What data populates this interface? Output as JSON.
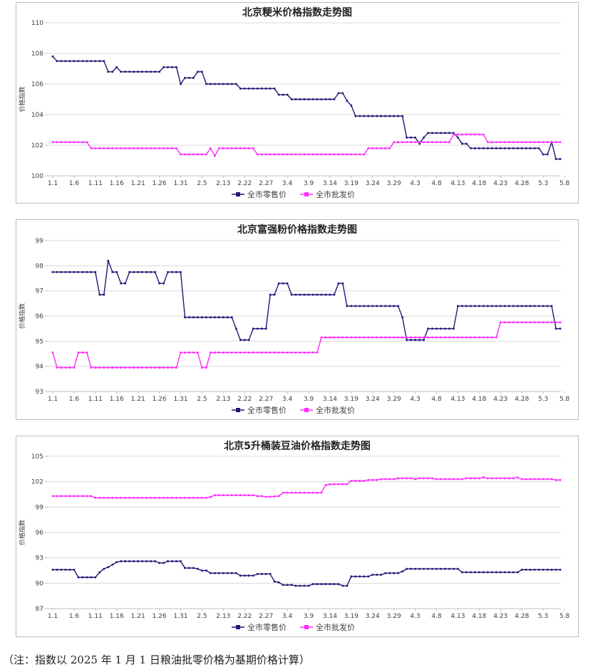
{
  "colors": {
    "retail": "#1f1a78",
    "wholesale": "#ff2bff",
    "grid": "#d9d9d9",
    "axis": "#bfbfbf",
    "text": "#404040"
  },
  "footnote": "（注：指数以 2025 年 1 月 1 日粮油批零价格为基期价格计算）",
  "chart_data": [
    {
      "type": "line",
      "title": "北京粳米价格指数走势图",
      "ylabel": "价格指数",
      "ylim": [
        100,
        110
      ],
      "yticks": [
        100,
        102,
        104,
        106,
        108,
        110
      ],
      "xtick_labels": [
        "1.1",
        "1.6",
        "1.11",
        "1.16",
        "1.21",
        "1.26",
        "1.31",
        "2.5",
        "2.13",
        "2.22",
        "2.27",
        "3.4",
        "3.9",
        "3.14",
        "3.19",
        "3.24",
        "3.29",
        "4.3",
        "4.8",
        "4.13",
        "4.18",
        "4.23",
        "4.28",
        "5.3",
        "5.8"
      ],
      "point_count": 120,
      "legend": "bottom",
      "series": [
        {
          "name": "全市零售价",
          "color": "#1f1a78",
          "segments": [
            [
              0,
              107.8
            ],
            [
              1,
              107.5
            ],
            [
              12,
              107.5
            ],
            [
              13,
              106.8
            ],
            [
              14,
              106.8
            ],
            [
              15,
              107.1
            ],
            [
              16,
              106.8
            ],
            [
              25,
              106.8
            ],
            [
              26,
              107.1
            ],
            [
              29,
              107.1
            ],
            [
              30,
              106.0
            ],
            [
              31,
              106.4
            ],
            [
              33,
              106.4
            ],
            [
              34,
              106.8
            ],
            [
              35,
              106.8
            ],
            [
              36,
              106.0
            ],
            [
              43,
              106.0
            ],
            [
              44,
              105.7
            ],
            [
              52,
              105.7
            ],
            [
              53,
              105.3
            ],
            [
              55,
              105.3
            ],
            [
              56,
              105.0
            ],
            [
              66,
              105.0
            ],
            [
              67,
              105.4
            ],
            [
              68,
              105.4
            ],
            [
              69,
              104.9
            ],
            [
              70,
              104.6
            ],
            [
              71,
              103.9
            ],
            [
              82,
              103.9
            ],
            [
              83,
              102.5
            ],
            [
              85,
              102.5
            ],
            [
              86,
              102.1
            ],
            [
              87,
              102.5
            ],
            [
              88,
              102.8
            ],
            [
              94,
              102.8
            ],
            [
              95,
              102.5
            ],
            [
              96,
              102.1
            ],
            [
              97,
              102.1
            ],
            [
              98,
              101.8
            ],
            [
              114,
              101.8
            ],
            [
              115,
              101.4
            ],
            [
              116,
              101.4
            ],
            [
              117,
              102.2
            ],
            [
              118,
              101.1
            ],
            [
              119,
              101.1
            ]
          ]
        },
        {
          "name": "全市批发价",
          "color": "#ff2bff",
          "segments": [
            [
              0,
              102.2
            ],
            [
              8,
              102.2
            ],
            [
              9,
              101.8
            ],
            [
              29,
              101.8
            ],
            [
              30,
              101.4
            ],
            [
              36,
              101.4
            ],
            [
              37,
              101.8
            ],
            [
              38,
              101.3
            ],
            [
              39,
              101.8
            ],
            [
              47,
              101.8
            ],
            [
              48,
              101.4
            ],
            [
              73,
              101.4
            ],
            [
              74,
              101.8
            ],
            [
              79,
              101.8
            ],
            [
              80,
              102.2
            ],
            [
              93,
              102.2
            ],
            [
              94,
              102.7
            ],
            [
              101,
              102.7
            ],
            [
              102,
              102.2
            ],
            [
              119,
              102.2
            ]
          ]
        }
      ]
    },
    {
      "type": "line",
      "title": "北京富强粉价格指数走势图",
      "ylabel": "价格指数",
      "ylim": [
        93,
        99
      ],
      "yticks": [
        93,
        94,
        95,
        96,
        97,
        98,
        99
      ],
      "xtick_labels": [
        "1.1",
        "1.6",
        "1.11",
        "1.16",
        "1.21",
        "1.26",
        "1.31",
        "2.5",
        "2.13",
        "2.22",
        "2.27",
        "3.4",
        "3.9",
        "3.14",
        "3.19",
        "3.24",
        "3.29",
        "4.3",
        "4.8",
        "4.13",
        "4.18",
        "4.23",
        "4.28",
        "5.3",
        "5.8"
      ],
      "point_count": 120,
      "legend": "bottom",
      "series": [
        {
          "name": "全市零售价",
          "color": "#1f1a78",
          "segments": [
            [
              0,
              97.75
            ],
            [
              10,
              97.75
            ],
            [
              11,
              96.85
            ],
            [
              12,
              96.85
            ],
            [
              13,
              98.2
            ],
            [
              14,
              97.75
            ],
            [
              15,
              97.75
            ],
            [
              16,
              97.3
            ],
            [
              17,
              97.3
            ],
            [
              18,
              97.75
            ],
            [
              24,
              97.75
            ],
            [
              25,
              97.3
            ],
            [
              26,
              97.3
            ],
            [
              27,
              97.75
            ],
            [
              30,
              97.75
            ],
            [
              31,
              95.95
            ],
            [
              42,
              95.95
            ],
            [
              43,
              95.5
            ],
            [
              44,
              95.05
            ],
            [
              46,
              95.05
            ],
            [
              47,
              95.5
            ],
            [
              50,
              95.5
            ],
            [
              51,
              96.85
            ],
            [
              52,
              96.85
            ],
            [
              53,
              97.3
            ],
            [
              55,
              97.3
            ],
            [
              56,
              96.85
            ],
            [
              66,
              96.85
            ],
            [
              67,
              97.3
            ],
            [
              68,
              97.3
            ],
            [
              69,
              96.4
            ],
            [
              81,
              96.4
            ],
            [
              82,
              95.95
            ],
            [
              83,
              95.05
            ],
            [
              87,
              95.05
            ],
            [
              88,
              95.5
            ],
            [
              94,
              95.5
            ],
            [
              95,
              96.4
            ],
            [
              117,
              96.4
            ],
            [
              118,
              95.5
            ],
            [
              119,
              95.5
            ]
          ]
        },
        {
          "name": "全市批发价",
          "color": "#ff2bff",
          "segments": [
            [
              0,
              94.55
            ],
            [
              1,
              93.95
            ],
            [
              5,
              93.95
            ],
            [
              6,
              94.55
            ],
            [
              8,
              94.55
            ],
            [
              9,
              93.95
            ],
            [
              29,
              93.95
            ],
            [
              30,
              94.55
            ],
            [
              34,
              94.55
            ],
            [
              35,
              93.95
            ],
            [
              36,
              93.95
            ],
            [
              37,
              94.55
            ],
            [
              62,
              94.55
            ],
            [
              63,
              95.15
            ],
            [
              104,
              95.15
            ],
            [
              105,
              95.75
            ],
            [
              119,
              95.75
            ]
          ]
        }
      ]
    },
    {
      "type": "line",
      "title": "北京5升桶装豆油价格指数走势图",
      "ylabel": "价格指数",
      "ylim": [
        87,
        105
      ],
      "yticks": [
        87,
        90,
        93,
        96,
        99,
        102,
        105
      ],
      "xtick_labels": [
        "1.1",
        "1.6",
        "1.11",
        "1.16",
        "1.21",
        "1.26",
        "1.31",
        "2.5",
        "2.13",
        "2.22",
        "2.27",
        "3.4",
        "3.9",
        "3.14",
        "3.19",
        "3.24",
        "3.29",
        "4.3",
        "4.8",
        "4.13",
        "4.18",
        "4.23",
        "4.28",
        "5.3",
        "5.8"
      ],
      "point_count": 120,
      "legend": "bottom",
      "series": [
        {
          "name": "全市零售价",
          "color": "#1f1a78",
          "segments": [
            [
              0,
              91.6
            ],
            [
              5,
              91.6
            ],
            [
              6,
              90.7
            ],
            [
              10,
              90.7
            ],
            [
              11,
              91.3
            ],
            [
              12,
              91.7
            ],
            [
              13,
              91.9
            ],
            [
              14,
              92.2
            ],
            [
              15,
              92.5
            ],
            [
              16,
              92.6
            ],
            [
              24,
              92.6
            ],
            [
              25,
              92.4
            ],
            [
              26,
              92.4
            ],
            [
              27,
              92.6
            ],
            [
              30,
              92.6
            ],
            [
              31,
              91.8
            ],
            [
              33,
              91.8
            ],
            [
              34,
              91.7
            ],
            [
              35,
              91.5
            ],
            [
              36,
              91.5
            ],
            [
              37,
              91.2
            ],
            [
              43,
              91.2
            ],
            [
              44,
              90.9
            ],
            [
              47,
              90.9
            ],
            [
              48,
              91.1
            ],
            [
              51,
              91.1
            ],
            [
              52,
              90.2
            ],
            [
              53,
              90.1
            ],
            [
              54,
              89.8
            ],
            [
              56,
              89.8
            ],
            [
              57,
              89.7
            ],
            [
              60,
              89.7
            ],
            [
              61,
              89.9
            ],
            [
              67,
              89.9
            ],
            [
              68,
              89.7
            ],
            [
              69,
              89.7
            ],
            [
              70,
              90.8
            ],
            [
              74,
              90.8
            ],
            [
              75,
              91.0
            ],
            [
              77,
              91.0
            ],
            [
              78,
              91.2
            ],
            [
              81,
              91.2
            ],
            [
              82,
              91.4
            ],
            [
              83,
              91.7
            ],
            [
              95,
              91.7
            ],
            [
              96,
              91.3
            ],
            [
              109,
              91.3
            ],
            [
              110,
              91.6
            ],
            [
              119,
              91.6
            ]
          ]
        },
        {
          "name": "全市批发价",
          "color": "#ff2bff",
          "segments": [
            [
              0,
              100.3
            ],
            [
              9,
              100.3
            ],
            [
              10,
              100.1
            ],
            [
              36,
              100.1
            ],
            [
              37,
              100.2
            ],
            [
              38,
              100.4
            ],
            [
              47,
              100.4
            ],
            [
              48,
              100.3
            ],
            [
              49,
              100.3
            ],
            [
              50,
              100.2
            ],
            [
              53,
              100.3
            ],
            [
              54,
              100.7
            ],
            [
              63,
              100.7
            ],
            [
              64,
              101.6
            ],
            [
              65,
              101.7
            ],
            [
              69,
              101.7
            ],
            [
              70,
              102.1
            ],
            [
              73,
              102.1
            ],
            [
              74,
              102.2
            ],
            [
              76,
              102.2
            ],
            [
              77,
              102.3
            ],
            [
              80,
              102.3
            ],
            [
              81,
              102.4
            ],
            [
              84,
              102.4
            ],
            [
              85,
              102.3
            ],
            [
              86,
              102.4
            ],
            [
              89,
              102.4
            ],
            [
              90,
              102.3
            ],
            [
              96,
              102.3
            ],
            [
              97,
              102.4
            ],
            [
              100,
              102.4
            ],
            [
              101,
              102.5
            ],
            [
              102,
              102.4
            ],
            [
              108,
              102.4
            ],
            [
              109,
              102.5
            ],
            [
              110,
              102.3
            ],
            [
              117,
              102.3
            ],
            [
              118,
              102.2
            ],
            [
              119,
              102.2
            ]
          ]
        }
      ]
    }
  ]
}
